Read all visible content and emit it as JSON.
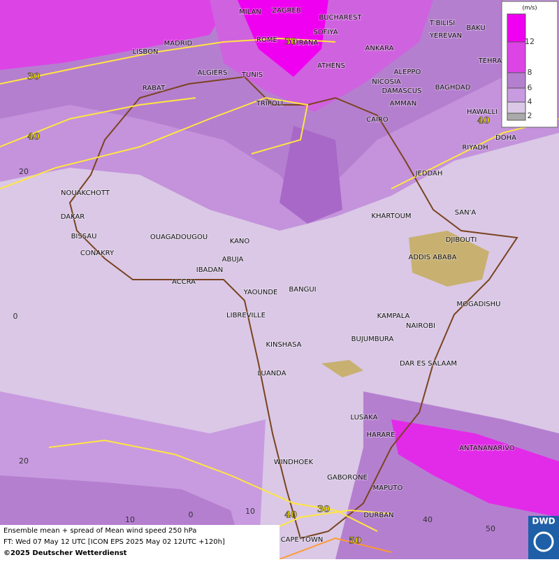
{
  "map": {
    "cities": [
      "MILAN",
      "ZAGREB",
      "BUCHAREST",
      "T'BILISI",
      "BAKU",
      "MADRID",
      "ROME",
      "TIRANA",
      "SOFIYA",
      "YEREVAN",
      "LISBON",
      "ANKARA",
      "TEHRAN",
      "ALGIERS",
      "TUNIS",
      "ATHENS",
      "ALEPPO",
      "RABAT",
      "NICOSIA",
      "DAMASCUS",
      "BAGHDAD",
      "TRIPOLI",
      "AMMAN",
      "HAWALLI",
      "CAIRO",
      "DOHA",
      "RIYADH",
      "JEDDAH",
      "NOUAKCHOTT",
      "SAN'A",
      "KHARTOUM",
      "DAKAR",
      "BISSAU",
      "OUAGADOUGOU",
      "KANO",
      "DJIBOUTI",
      "CONAKRY",
      "ABUJA",
      "ADDIS ABABA",
      "IBADAN",
      "ACCRA",
      "YAOUNDE",
      "BANGUI",
      "MOGADISHU",
      "LIBREVILLE",
      "KAMPALA",
      "NAIROBI",
      "KINSHASA",
      "BUJUMBURA",
      "DAR ES SALAAM",
      "LUANDA",
      "LUSAKA",
      "HARARE",
      "ANTANANARIVO",
      "WINDHOEK",
      "GABORONE",
      "MAPUTO",
      "DURBAN",
      "CAPE TOWN"
    ],
    "contour_labels": [
      "30",
      "30",
      "40",
      "40",
      "30",
      "40",
      "50"
    ],
    "lat_labels": [
      "20",
      "0",
      "20"
    ],
    "lon_labels": [
      "10",
      "0",
      "10",
      "40",
      "50"
    ]
  },
  "legend": {
    "unit": "(m/s)",
    "labels": [
      "12",
      "8",
      "6",
      "4",
      "2"
    ]
  },
  "footer": {
    "line1": "Ensemble mean + spread of Mean wind speed 250 hPa",
    "line2": "FT: Wed 07 May 12 UTC [ICON EPS 2025 May 02 12UTC +120h]",
    "line3": "©2025 Deutscher Wetterdienst",
    "logo": "DWD"
  }
}
